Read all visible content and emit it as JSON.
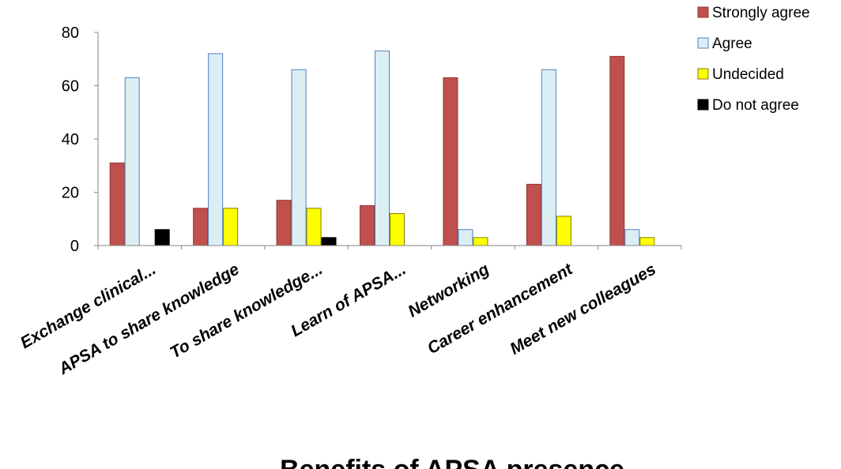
{
  "chart_data": {
    "type": "bar",
    "title": "",
    "xlabel": "Benefits of APSA presence",
    "ylabel": "",
    "ylim": [
      0,
      80
    ],
    "yticks": [
      0,
      20,
      40,
      60,
      80
    ],
    "grid": false,
    "legend_position": "top-right",
    "categories": [
      "Exchange clinical...",
      "APSA to share knowledge",
      "To share knowledge...",
      "Learn of APSA...",
      "Networking",
      "Career enhancement",
      "Meet new colleagues"
    ],
    "series": [
      {
        "name": "Strongly agree",
        "color": "#c0504d",
        "stroke": "#943634",
        "values": [
          31,
          14,
          17,
          15,
          63,
          23,
          71
        ]
      },
      {
        "name": "Agree",
        "color": "#dbeef4",
        "stroke": "#4f81bd",
        "values": [
          63,
          72,
          66,
          73,
          6,
          66,
          6
        ]
      },
      {
        "name": "Undecided",
        "color": "#ffff00",
        "stroke": "#7f7f00",
        "values": [
          0,
          14,
          14,
          12,
          3,
          11,
          3
        ]
      },
      {
        "name": "Do not agree",
        "color": "#000000",
        "stroke": "#000000",
        "values": [
          6,
          0,
          3,
          0,
          0,
          0,
          0
        ]
      }
    ]
  }
}
